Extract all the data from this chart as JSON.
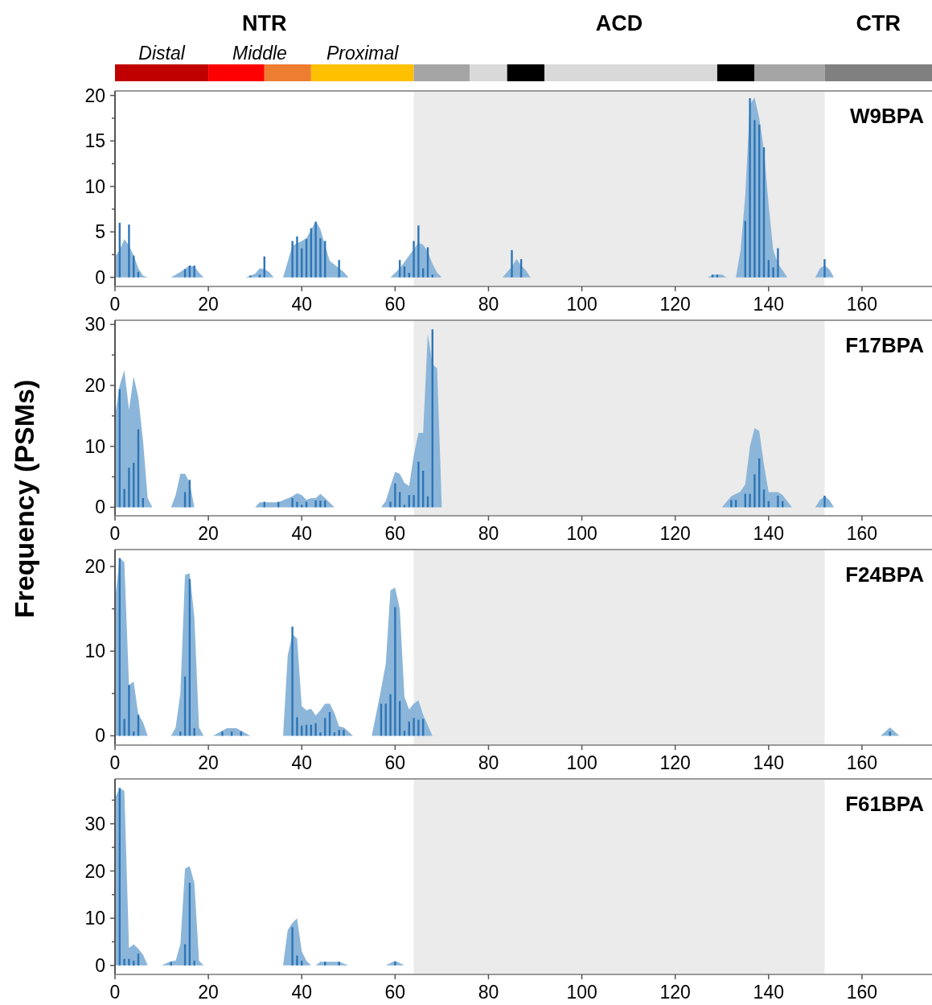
{
  "chart_data": [
    {
      "type": "bar",
      "title": "W9BPA",
      "xlim": [
        0,
        175
      ],
      "xticks": [
        0,
        20,
        40,
        60,
        80,
        100,
        120,
        140,
        160
      ],
      "ylim": [
        -1,
        20.5
      ],
      "yticks": [
        0,
        {
          "value": 2.5,
          "label": null
        },
        5,
        {
          "value": 7.5,
          "label": null
        },
        10,
        {
          "value": 12.5,
          "label": null
        },
        15,
        {
          "value": 17.5,
          "label": null
        },
        20
      ],
      "annotations": [
        "NTR",
        "ACD",
        "CTR",
        "Distal",
        "Middle",
        "Proximal"
      ],
      "bands": [
        {
          "axis": "x",
          "from": 64,
          "to": 152,
          "color": "#ebebeb"
        }
      ],
      "series": [
        {
          "type": "area",
          "color": "#8cb6d9",
          "x": [
            0,
            1,
            2,
            3,
            4,
            5,
            6,
            7,
            12,
            14,
            16,
            17,
            18,
            19,
            28,
            30,
            31,
            32,
            33,
            34,
            36,
            38,
            40,
            41,
            42,
            43,
            44,
            45,
            46,
            48,
            49,
            50,
            59,
            61,
            63,
            65,
            66,
            67,
            68,
            69,
            70,
            83,
            85,
            86,
            87,
            88,
            89,
            127,
            128,
            130,
            131,
            133,
            134,
            135,
            136,
            137,
            138,
            139,
            140,
            141,
            142,
            143,
            144,
            150,
            151,
            152,
            153,
            154
          ],
          "values": [
            2.3,
            3,
            4.2,
            3.5,
            2.4,
            1,
            0.2,
            0,
            0,
            0.6,
            1.3,
            1.2,
            0.5,
            0,
            0,
            0.4,
            1,
            0.9,
            0.6,
            0,
            0,
            3.5,
            4,
            4.3,
            5.2,
            6.2,
            5.3,
            3.5,
            1.8,
            1,
            0.6,
            0,
            0,
            1,
            2.4,
            3.8,
            3.6,
            2.8,
            1.5,
            0.5,
            0,
            0,
            1.2,
            2,
            1.3,
            0.8,
            0,
            0,
            0.3,
            0.3,
            0,
            0,
            3,
            9,
            19,
            19.8,
            17.5,
            14,
            8,
            3,
            1.5,
            0.8,
            0,
            0,
            1,
            1.3,
            0.9,
            0
          ]
        },
        {
          "type": "bar",
          "color": "#2e75b6",
          "x": [
            1,
            3,
            4,
            5,
            15,
            16,
            17,
            29,
            31,
            32,
            38,
            39,
            40,
            41,
            42,
            43,
            44,
            45,
            48,
            61,
            62,
            63,
            64,
            65,
            66,
            67,
            68,
            85,
            87,
            128,
            129,
            135,
            136,
            137,
            138,
            139,
            140,
            141,
            142,
            152
          ],
          "values": [
            6,
            5.8,
            2.4,
            0.6,
            0.9,
            1.3,
            1.3,
            0.2,
            0.3,
            2.3,
            4,
            4.5,
            3.2,
            4.2,
            5.4,
            6.1,
            4.3,
            4,
            1.9,
            1.9,
            1.2,
            0.5,
            4,
            5.7,
            1,
            3.3,
            0.3,
            3,
            2,
            0.3,
            0.3,
            6.2,
            19.7,
            17.3,
            16.8,
            14.3,
            1.9,
            1.1,
            3.2,
            2
          ]
        }
      ]
    },
    {
      "type": "bar",
      "title": "F17BPA",
      "ylabel": "Frequency (PSMs)",
      "xlim": [
        0,
        175
      ],
      "xticks": [
        0,
        20,
        40,
        60,
        80,
        100,
        120,
        140,
        160
      ],
      "ylim": [
        -1.4,
        30.7
      ],
      "yticks": [
        0,
        {
          "value": 5,
          "label": null
        },
        10,
        {
          "value": 15,
          "label": null
        },
        20,
        {
          "value": 25,
          "label": null
        },
        30
      ],
      "bands": [
        {
          "axis": "x",
          "from": 64,
          "to": 152,
          "color": "#ebebeb"
        }
      ],
      "series": [
        {
          "type": "area",
          "color": "#8cb6d9",
          "x": [
            0,
            1,
            2,
            3,
            4,
            5,
            6,
            7,
            8,
            12,
            13,
            14,
            15,
            16,
            17,
            30,
            31,
            35,
            38,
            39,
            40,
            41,
            42,
            43,
            44,
            45,
            47,
            57,
            58,
            59,
            60,
            61,
            62,
            63,
            64,
            65,
            66,
            67,
            68,
            69,
            70,
            130,
            132,
            134,
            135,
            136,
            137,
            138,
            139,
            140,
            142,
            143,
            145,
            150,
            151,
            152,
            153,
            154
          ],
          "values": [
            15,
            20,
            22.5,
            16,
            21.5,
            18,
            11,
            1.5,
            0,
            0,
            2,
            5.5,
            5.5,
            4,
            0,
            0,
            0.8,
            0.8,
            1.8,
            2.3,
            2,
            1.2,
            1.5,
            1.5,
            2.2,
            1.5,
            0,
            0,
            1,
            3.5,
            5.8,
            5.5,
            4,
            3.5,
            8.5,
            12.2,
            12.2,
            28.5,
            23.5,
            22.8,
            0,
            0,
            1.8,
            2.6,
            3.8,
            10,
            13,
            12.5,
            7,
            2.5,
            2.5,
            2,
            0,
            0,
            1.2,
            1.8,
            1.2,
            0
          ]
        },
        {
          "type": "bar",
          "color": "#2e75b6",
          "x": [
            1,
            2,
            3,
            4,
            5,
            6,
            15,
            16,
            32,
            35,
            38,
            39,
            40,
            41,
            43,
            44,
            45,
            59,
            60,
            61,
            62,
            63,
            64,
            65,
            66,
            67,
            68,
            132,
            133,
            135,
            136,
            137,
            138,
            139,
            140,
            142,
            143,
            152
          ],
          "values": [
            19.4,
            3,
            6.5,
            7.3,
            12.8,
            1.5,
            2.5,
            4.5,
            0.9,
            0.9,
            1.5,
            0.9,
            0.4,
            0.9,
            1.1,
            1.1,
            1.1,
            0.9,
            3.9,
            2.5,
            0.4,
            2,
            2,
            7.5,
            6,
            1.8,
            29.2,
            1.2,
            1.2,
            2.2,
            2.2,
            5.4,
            8,
            2.9,
            1,
            1.9,
            1,
            1.9
          ]
        }
      ]
    },
    {
      "type": "bar",
      "title": "F24BPA",
      "xlim": [
        0,
        175
      ],
      "xticks": [
        0,
        20,
        40,
        60,
        80,
        100,
        120,
        140,
        160
      ],
      "ylim": [
        -1.1,
        22
      ],
      "yticks": [
        0,
        {
          "value": 5,
          "label": null
        },
        10,
        {
          "value": 15,
          "label": null
        },
        20
      ],
      "bands": [
        {
          "axis": "x",
          "from": 64,
          "to": 152,
          "color": "#ebebeb"
        }
      ],
      "series": [
        {
          "type": "area",
          "color": "#8cb6d9",
          "x": [
            0,
            1,
            2,
            3,
            4,
            5,
            6,
            7,
            12,
            13,
            14,
            15,
            16,
            17,
            18,
            19,
            21,
            23,
            24,
            26,
            27,
            29,
            36,
            37,
            38,
            39,
            40,
            41,
            42,
            43,
            44,
            45,
            46,
            47,
            48,
            49,
            51,
            55,
            57,
            58,
            59,
            60,
            61,
            62,
            63,
            64,
            65,
            66,
            68,
            164,
            166,
            168
          ],
          "values": [
            16,
            21,
            20.5,
            6,
            6.4,
            2.5,
            1.6,
            0,
            0,
            1,
            5,
            19,
            19.2,
            14,
            1,
            0,
            0,
            0.6,
            0.9,
            0.9,
            0.6,
            0,
            0,
            9.5,
            12,
            11.5,
            3.5,
            3,
            3.2,
            2.4,
            3,
            3.8,
            3.8,
            2.7,
            1.1,
            1,
            0,
            0,
            5.5,
            8.5,
            17.2,
            17.5,
            15,
            4.6,
            3.1,
            3.8,
            4.2,
            2.5,
            0,
            0,
            1,
            0
          ]
        },
        {
          "type": "bar",
          "color": "#2e75b6",
          "x": [
            1,
            2,
            3,
            4,
            5,
            14,
            15,
            16,
            17,
            23,
            25,
            27,
            38,
            39,
            40,
            41,
            42,
            43,
            44,
            45,
            46,
            47,
            48,
            49,
            57,
            58,
            59,
            60,
            61,
            62,
            63,
            64,
            65,
            66,
            166
          ],
          "values": [
            21,
            2,
            6,
            0.5,
            2.5,
            0.5,
            7,
            18.5,
            0.9,
            0.5,
            0.5,
            0.5,
            12.9,
            2.2,
            1.2,
            1.3,
            1.3,
            1.5,
            0.4,
            2.1,
            2.8,
            0.4,
            0.7,
            0.7,
            3.8,
            3.8,
            4.9,
            15.2,
            4.1,
            0.6,
            1.7,
            2.1,
            1.9,
            2,
            0.5
          ]
        }
      ]
    },
    {
      "type": "bar",
      "title": "F61BPA",
      "xlim": [
        0,
        175
      ],
      "xticks": [
        0,
        20,
        40,
        60,
        80,
        100,
        120,
        140,
        160
      ],
      "ylim": [
        -1.9,
        39.5
      ],
      "yticks": [
        0,
        {
          "value": 5,
          "label": null
        },
        10,
        {
          "value": 15,
          "label": null
        },
        20,
        {
          "value": 25,
          "label": null
        },
        30,
        {
          "value": 35,
          "label": null
        }
      ],
      "bands": [
        {
          "axis": "x",
          "from": 64,
          "to": 152,
          "color": "#ebebeb"
        }
      ],
      "series": [
        {
          "type": "area",
          "color": "#8cb6d9",
          "x": [
            0,
            1,
            2,
            3,
            4,
            5,
            6,
            7,
            10,
            12,
            13,
            14,
            15,
            16,
            17,
            18,
            19,
            36,
            37,
            38,
            39,
            40,
            41,
            42,
            43,
            44,
            48,
            50,
            58,
            60,
            62
          ],
          "values": [
            35.5,
            37.5,
            37,
            3.7,
            4.5,
            3.5,
            2.3,
            0,
            0,
            0.9,
            1,
            4.5,
            20.5,
            21,
            17.5,
            1,
            0,
            0,
            7.5,
            9,
            10,
            3,
            1,
            0,
            0,
            0.8,
            0.8,
            0,
            0,
            1,
            0
          ]
        },
        {
          "type": "bar",
          "color": "#2e75b6",
          "x": [
            1,
            2,
            3,
            4,
            5,
            12,
            15,
            16,
            17,
            38,
            39,
            40,
            45,
            48,
            60
          ],
          "values": [
            37.6,
            1.4,
            1.4,
            1,
            2.5,
            0.7,
            4.5,
            17.5,
            1,
            8.1,
            2.1,
            1,
            0.8,
            0.8,
            0.8
          ]
        }
      ]
    }
  ]
}
